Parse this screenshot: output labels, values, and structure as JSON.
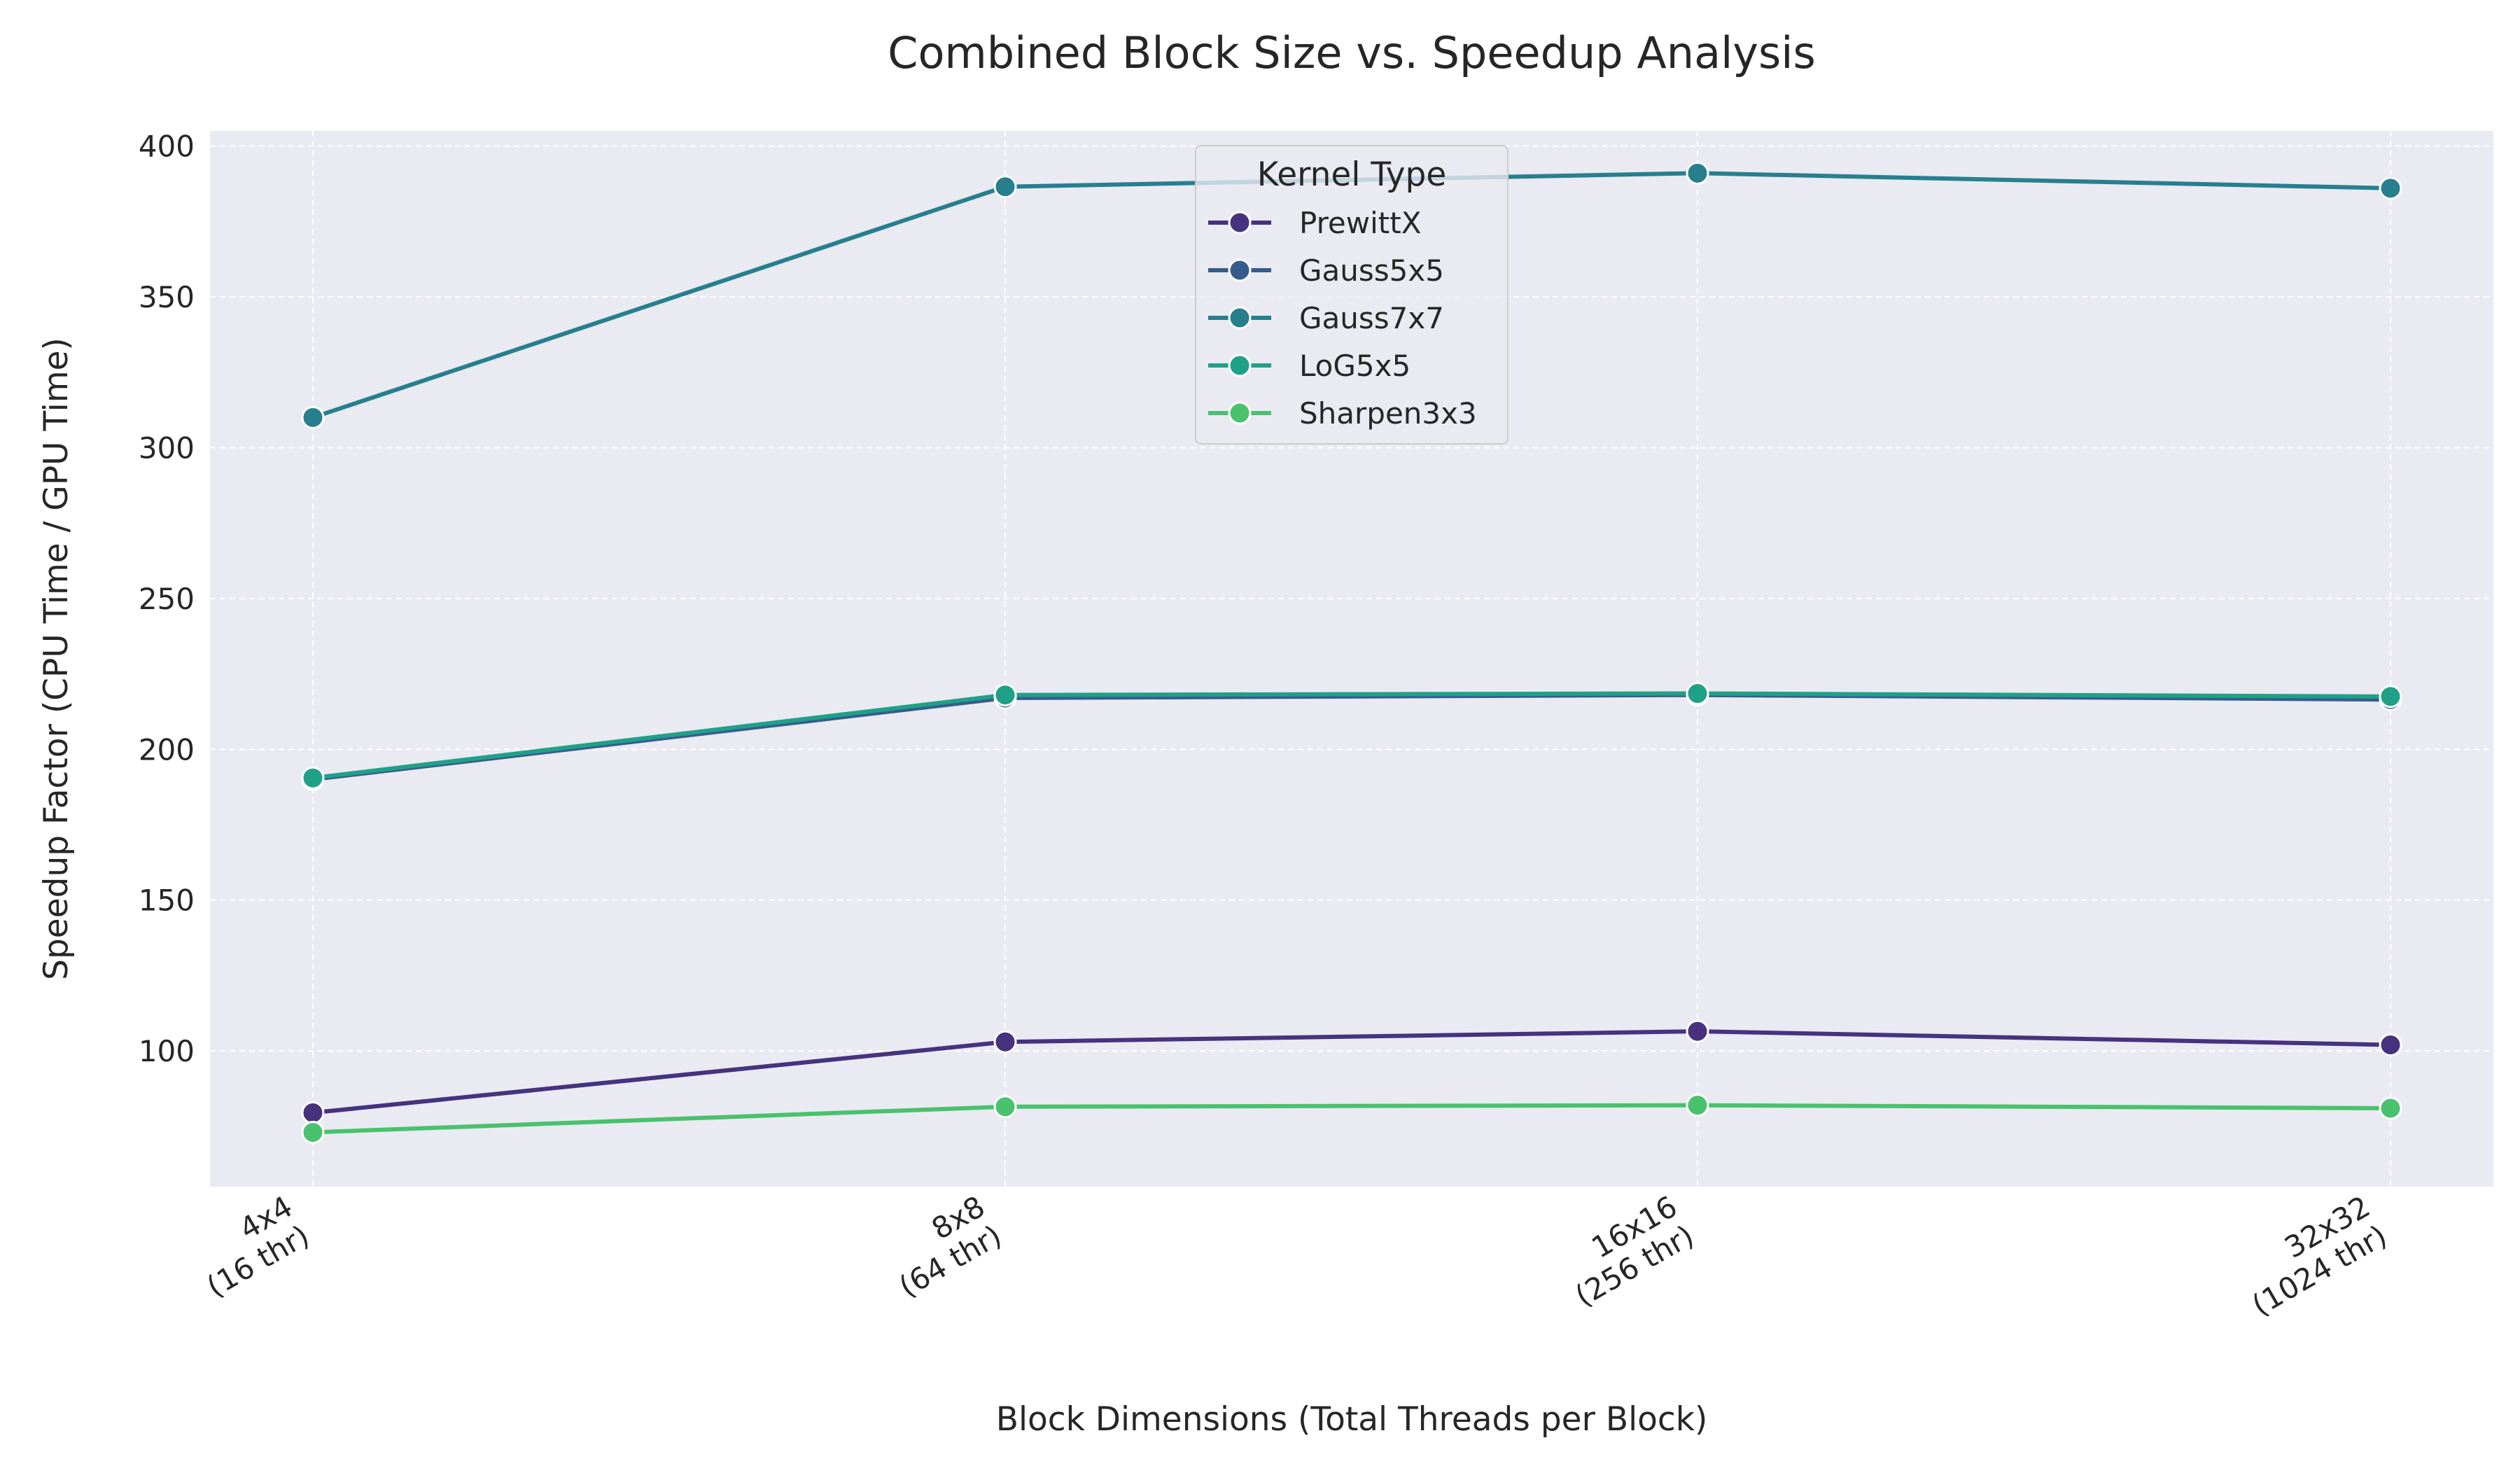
{
  "chart_data": {
    "type": "line",
    "title": "Combined Block Size vs. Speedup Analysis",
    "xlabel": "Block Dimensions (Total Threads per Block)",
    "ylabel": "Speedup Factor (CPU Time / GPU Time)",
    "categories": [
      [
        "4x4",
        "(16 thr)"
      ],
      [
        "8x8",
        "(64 thr)"
      ],
      [
        "16x16",
        "(256 thr)"
      ],
      [
        "32x32",
        "(1024 thr)"
      ]
    ],
    "ylim": [
      55,
      405
    ],
    "yticks": [
      100,
      150,
      200,
      250,
      300,
      350,
      400
    ],
    "grid": true,
    "legend": {
      "title": "Kernel Type",
      "placement": "top-center"
    },
    "series": [
      {
        "name": "PrewittX",
        "color": "#46327e",
        "values": [
          79.5,
          103,
          106.5,
          102
        ]
      },
      {
        "name": "Gauss5x5",
        "color": "#365c8d",
        "values": [
          190,
          217,
          218,
          216.5
        ]
      },
      {
        "name": "Gauss7x7",
        "color": "#277f8e",
        "values": [
          310,
          386.5,
          391,
          386
        ]
      },
      {
        "name": "LoG5x5",
        "color": "#1fa187",
        "values": [
          190.5,
          218,
          218.5,
          217.5
        ]
      },
      {
        "name": "Sharpen3x3",
        "color": "#4ac16d",
        "values": [
          73,
          81.5,
          82,
          81
        ]
      }
    ]
  }
}
